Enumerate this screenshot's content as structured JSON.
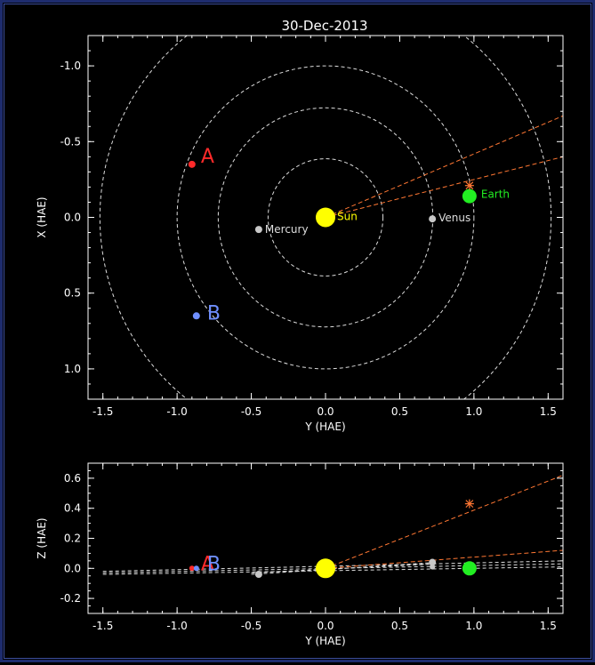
{
  "title": "30-Dec-2013",
  "chart_data": [
    {
      "type": "scatter",
      "panel": "top",
      "xlabel": "Y (HAE)",
      "ylabel": "X (HAE)",
      "xlim": [
        -1.6,
        1.6
      ],
      "ylim": [
        -1.2,
        1.2
      ],
      "y_inverted": true,
      "xticks": [
        -1.5,
        -1.0,
        -0.5,
        0.0,
        0.5,
        1.0,
        1.5
      ],
      "yticks": [
        -1.0,
        -0.5,
        0.0,
        0.5,
        1.0
      ],
      "xtick_labels": [
        "-1.5",
        "-1.0",
        "-0.5",
        "0.0",
        "0.5",
        "1.0",
        "1.5"
      ],
      "ytick_labels": [
        "-1.0",
        "-0.5",
        "0.0",
        "0.5",
        "1.0"
      ],
      "orbits_radius": [
        0.387,
        0.723,
        1.0,
        1.52
      ],
      "bodies": [
        {
          "name": "Sun",
          "x": 0.0,
          "y": 0.0,
          "color": "#ffff00",
          "r": 11
        },
        {
          "name": "Mercury",
          "x": -0.45,
          "y": 0.08,
          "color": "#c8c8c8",
          "r": 4
        },
        {
          "name": "Venus",
          "x": 0.72,
          "y": 0.01,
          "color": "#c8c8c8",
          "r": 4
        },
        {
          "name": "Earth",
          "x": 0.97,
          "y": -0.14,
          "color": "#22ee22",
          "r": 8
        },
        {
          "name": "A",
          "x": -0.9,
          "y": -0.35,
          "color": "#ff2a2a",
          "r": 4
        },
        {
          "name": "B",
          "x": -0.87,
          "y": 0.65,
          "color": "#6f8fff",
          "r": 4
        }
      ],
      "marker_star": {
        "x": 0.97,
        "y": -0.21,
        "color": "#ff7733"
      },
      "fov_lines": [
        {
          "from": [
            0.0,
            0.0
          ],
          "to": [
            1.6,
            -0.67
          ],
          "color": "#ff7733"
        },
        {
          "from": [
            0.0,
            0.0
          ],
          "to": [
            1.6,
            -0.4
          ],
          "color": "#ff7733"
        }
      ]
    },
    {
      "type": "scatter",
      "panel": "bottom",
      "xlabel": "Y (HAE)",
      "ylabel": "Z (HAE)",
      "xlim": [
        -1.6,
        1.6
      ],
      "ylim": [
        -0.3,
        0.7
      ],
      "xticks": [
        -1.5,
        -1.0,
        -0.5,
        0.0,
        0.5,
        1.0,
        1.5
      ],
      "yticks": [
        -0.2,
        0.0,
        0.2,
        0.4,
        0.6
      ],
      "xtick_labels": [
        "-1.5",
        "-1.0",
        "-0.5",
        "0.0",
        "0.5",
        "1.0",
        "1.5"
      ],
      "ytick_labels": [
        "-0.2",
        "0.0",
        "0.2",
        "0.4",
        "0.6"
      ],
      "bodies": [
        {
          "name": "Sun",
          "x": 0.0,
          "z": 0.0,
          "color": "#ffff00",
          "r": 11
        },
        {
          "name": "Mercury",
          "x": -0.45,
          "z": -0.04,
          "color": "#c8c8c8",
          "r": 4
        },
        {
          "name": "Venus",
          "x": 0.72,
          "z": 0.04,
          "color": "#c8c8c8",
          "r": 4
        },
        {
          "name": "Venus2",
          "x": 0.72,
          "z": 0.01,
          "color": "#c8c8c8",
          "r": 3
        },
        {
          "name": "Earth",
          "x": 0.97,
          "z": 0.0,
          "color": "#22ee22",
          "r": 8
        },
        {
          "name": "A",
          "x": -0.9,
          "z": 0.0,
          "color": "#ff2a2a",
          "r": 3
        },
        {
          "name": "B",
          "x": -0.87,
          "z": 0.0,
          "color": "#6f8fff",
          "r": 3
        }
      ],
      "marker_star": {
        "x": 0.97,
        "z": 0.43,
        "color": "#ff7733"
      },
      "fov_lines": [
        {
          "from": [
            0.0,
            0.0
          ],
          "to": [
            1.6,
            0.62
          ],
          "color": "#ff7733"
        },
        {
          "from": [
            0.0,
            0.0
          ],
          "to": [
            1.6,
            0.12
          ],
          "color": "#ff7733"
        }
      ],
      "labels": [
        "A",
        "B"
      ]
    }
  ]
}
